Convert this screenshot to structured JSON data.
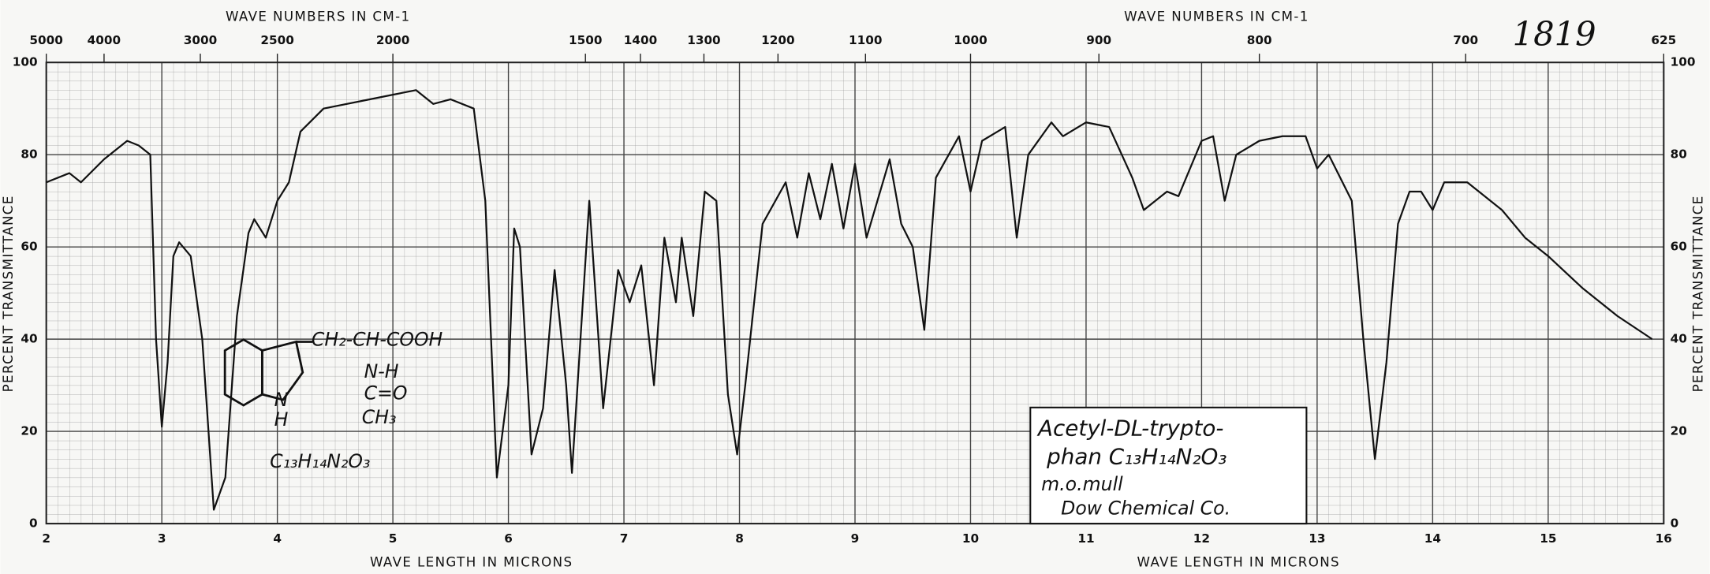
{
  "chart_data": {
    "type": "line",
    "xlabel": "WAVE LENGTH IN MICRONS",
    "x2label": "WAVE NUMBERS IN CM-1",
    "ylabel": "PERCENT TRANSMITTANCE",
    "xlim": [
      2,
      16
    ],
    "ylim": [
      0,
      100
    ],
    "xticks": [
      2,
      3,
      4,
      5,
      6,
      7,
      8,
      9,
      10,
      11,
      12,
      13,
      14,
      15,
      16
    ],
    "yticks": [
      0,
      20,
      40,
      60,
      80,
      100
    ],
    "x2ticks": [
      5000,
      4000,
      3000,
      2500,
      2000,
      1500,
      1400,
      1300,
      1200,
      1100,
      1000,
      900,
      800,
      700,
      625
    ],
    "grid": true,
    "x": [
      2.0,
      2.2,
      2.3,
      2.5,
      2.7,
      2.8,
      2.9,
      2.95,
      3.0,
      3.05,
      3.1,
      3.15,
      3.25,
      3.35,
      3.45,
      3.55,
      3.65,
      3.75,
      3.8,
      3.9,
      4.0,
      4.1,
      4.2,
      4.4,
      4.8,
      5.0,
      5.2,
      5.35,
      5.5,
      5.7,
      5.8,
      5.9,
      6.0,
      6.05,
      6.1,
      6.2,
      6.3,
      6.4,
      6.5,
      6.55,
      6.7,
      6.82,
      6.95,
      7.05,
      7.15,
      7.26,
      7.35,
      7.45,
      7.5,
      7.6,
      7.7,
      7.8,
      7.9,
      7.98,
      8.05,
      8.2,
      8.4,
      8.5,
      8.6,
      8.7,
      8.8,
      8.9,
      9.0,
      9.1,
      9.3,
      9.4,
      9.5,
      9.6,
      9.7,
      9.9,
      10.0,
      10.1,
      10.3,
      10.4,
      10.5,
      10.7,
      10.8,
      11.0,
      11.2,
      11.4,
      11.5,
      11.7,
      11.8,
      12.0,
      12.1,
      12.2,
      12.3,
      12.5,
      12.7,
      12.9,
      13.0,
      13.1,
      13.3,
      13.4,
      13.5,
      13.6,
      13.7,
      13.8,
      13.9,
      14.0,
      14.1,
      14.3,
      14.6,
      14.8,
      15.0,
      15.3,
      15.6,
      15.9
    ],
    "series": [
      {
        "name": "Acetyl-DL-tryptophan",
        "color": "#111111",
        "values": [
          74,
          76,
          74,
          79,
          83,
          82,
          80,
          40,
          21,
          35,
          58,
          61,
          58,
          40,
          3,
          10,
          45,
          63,
          66,
          62,
          70,
          74,
          85,
          90,
          92,
          93,
          94,
          91,
          92,
          90,
          70,
          10,
          30,
          64,
          60,
          15,
          25,
          55,
          30,
          11,
          70,
          25,
          55,
          48,
          56,
          30,
          62,
          48,
          62,
          45,
          72,
          70,
          28,
          15,
          30,
          65,
          74,
          62,
          76,
          66,
          78,
          64,
          78,
          62,
          79,
          65,
          60,
          42,
          75,
          84,
          72,
          83,
          86,
          62,
          80,
          87,
          84,
          87,
          86,
          75,
          68,
          72,
          71,
          83,
          84,
          70,
          80,
          83,
          84,
          84,
          77,
          80,
          70,
          40,
          14,
          35,
          65,
          72,
          72,
          68,
          74,
          74,
          68,
          62,
          58,
          51,
          45,
          40
        ]
      }
    ],
    "annotations": {
      "chart_number": "1819",
      "structure": [
        "CH₂-CH-COOH",
        "N-H",
        "C=O",
        "CH₃",
        "N",
        "H",
        "C₁₃H₁₄N₂O₃"
      ],
      "sample_note": [
        "Acetyl-DL-trypto-",
        "phan  C₁₃H₁₄N₂O₃",
        "m.o.mull",
        "Dow Chemical Co."
      ]
    }
  }
}
